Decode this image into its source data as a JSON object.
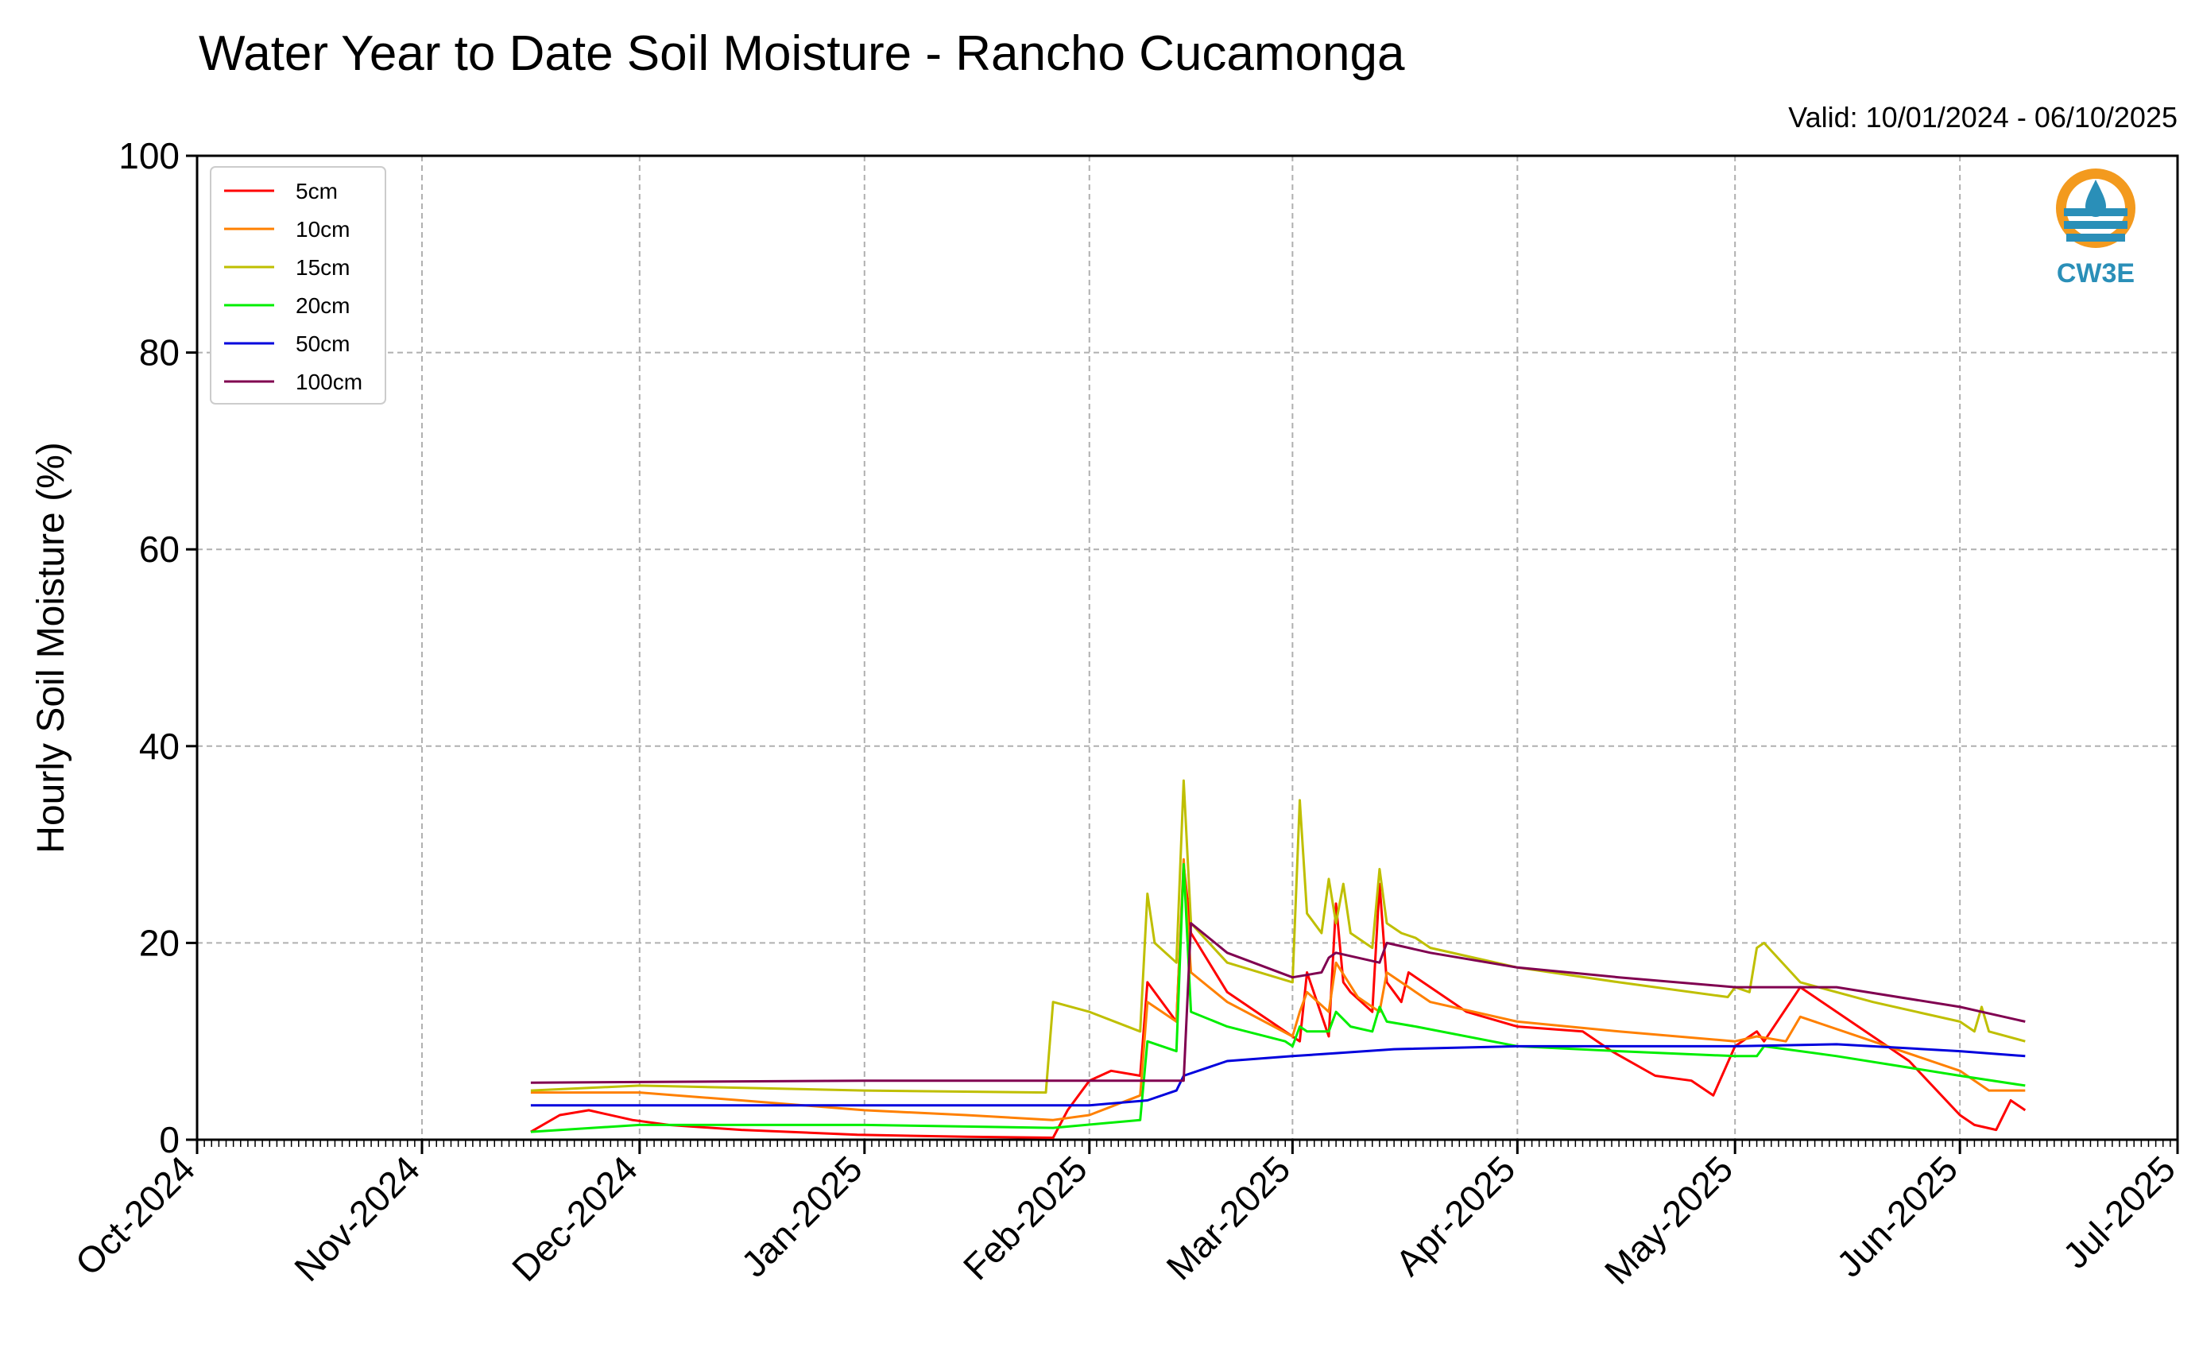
{
  "chart_data": {
    "type": "line",
    "title": "Water Year to Date Soil Moisture - Rancho Cucamonga",
    "subtitle": "Valid: 10/01/2024 - 06/10/2025",
    "xlabel": "",
    "ylabel": "Hourly Soil Moisture (%)",
    "ylim": [
      0,
      100
    ],
    "yticks": [
      0,
      20,
      40,
      60,
      80,
      100
    ],
    "xlim": [
      "2024-10-01",
      "2025-07-01"
    ],
    "xticks": [
      {
        "date": "2024-10-01",
        "label": "Oct-2024"
      },
      {
        "date": "2024-11-01",
        "label": "Nov-2024"
      },
      {
        "date": "2024-12-01",
        "label": "Dec-2024"
      },
      {
        "date": "2025-01-01",
        "label": "Jan-2025"
      },
      {
        "date": "2025-02-01",
        "label": "Feb-2025"
      },
      {
        "date": "2025-03-01",
        "label": "Mar-2025"
      },
      {
        "date": "2025-04-01",
        "label": "Apr-2025"
      },
      {
        "date": "2025-05-01",
        "label": "May-2025"
      },
      {
        "date": "2025-06-01",
        "label": "Jun-2025"
      },
      {
        "date": "2025-07-01",
        "label": "Jul-2025"
      }
    ],
    "grid": true,
    "legend_position": "top-left",
    "series": [
      {
        "name": "5cm",
        "color": "#ff0000",
        "x": [
          "2024-11-16",
          "2024-11-20",
          "2024-11-24",
          "2024-11-30",
          "2024-12-05",
          "2024-12-15",
          "2024-12-31",
          "2025-01-15",
          "2025-01-27",
          "2025-01-29",
          "2025-02-01",
          "2025-02-04",
          "2025-02-08",
          "2025-02-09",
          "2025-02-12",
          "2025-02-13",
          "2025-02-14",
          "2025-02-15",
          "2025-02-20",
          "2025-02-26",
          "2025-03-02",
          "2025-03-03",
          "2025-03-06",
          "2025-03-07",
          "2025-03-08",
          "2025-03-09",
          "2025-03-12",
          "2025-03-13",
          "2025-03-14",
          "2025-03-16",
          "2025-03-17",
          "2025-03-25",
          "2025-04-01",
          "2025-04-10",
          "2025-04-14",
          "2025-04-20",
          "2025-04-25",
          "2025-04-28",
          "2025-05-01",
          "2025-05-04",
          "2025-05-05",
          "2025-05-10",
          "2025-05-15",
          "2025-05-25",
          "2025-06-01",
          "2025-06-03",
          "2025-06-06",
          "2025-06-08",
          "2025-06-10"
        ],
        "y": [
          0.8,
          2.5,
          3.0,
          2.0,
          1.5,
          1.0,
          0.5,
          0.3,
          0.2,
          3.0,
          6.0,
          7.0,
          6.5,
          16.0,
          13.0,
          12.0,
          28.0,
          21.0,
          15.0,
          12.0,
          10.0,
          17.0,
          10.5,
          24.0,
          16.0,
          15.0,
          13.0,
          26.0,
          16.0,
          14.0,
          17.0,
          13.0,
          11.5,
          11.0,
          9.0,
          6.5,
          6.0,
          4.5,
          9.5,
          11.0,
          10.0,
          15.5,
          13.0,
          8.0,
          2.5,
          1.5,
          1.0,
          4.0,
          3.0
        ]
      },
      {
        "name": "10cm",
        "color": "#ff8000",
        "x": [
          "2024-11-16",
          "2024-12-01",
          "2024-12-15",
          "2025-01-01",
          "2025-01-15",
          "2025-01-27",
          "2025-02-01",
          "2025-02-08",
          "2025-02-09",
          "2025-02-13",
          "2025-02-14",
          "2025-02-15",
          "2025-02-20",
          "2025-03-01",
          "2025-03-02",
          "2025-03-03",
          "2025-03-06",
          "2025-03-07",
          "2025-03-10",
          "2025-03-13",
          "2025-03-14",
          "2025-03-20",
          "2025-04-01",
          "2025-04-15",
          "2025-05-01",
          "2025-05-04",
          "2025-05-08",
          "2025-05-10",
          "2025-05-20",
          "2025-06-01",
          "2025-06-05",
          "2025-06-10"
        ],
        "y": [
          4.8,
          4.8,
          4.0,
          3.0,
          2.5,
          2.0,
          2.5,
          4.5,
          14.0,
          12.0,
          28.5,
          17.0,
          14.0,
          10.5,
          13.0,
          15.0,
          13.0,
          18.0,
          14.5,
          13.0,
          17.0,
          14.0,
          12.0,
          11.0,
          10.0,
          10.5,
          10.0,
          12.5,
          10.0,
          7.0,
          5.0,
          5.0
        ]
      },
      {
        "name": "15cm",
        "color": "#bfbf00",
        "x": [
          "2024-11-16",
          "2024-12-01",
          "2025-01-01",
          "2025-01-26",
          "2025-01-27",
          "2025-02-01",
          "2025-02-08",
          "2025-02-09",
          "2025-02-10",
          "2025-02-13",
          "2025-02-14",
          "2025-02-15",
          "2025-02-20",
          "2025-03-01",
          "2025-03-02",
          "2025-03-03",
          "2025-03-05",
          "2025-03-06",
          "2025-03-07",
          "2025-03-08",
          "2025-03-09",
          "2025-03-12",
          "2025-03-13",
          "2025-03-14",
          "2025-03-16",
          "2025-03-18",
          "2025-03-20",
          "2025-04-01",
          "2025-04-15",
          "2025-04-30",
          "2025-05-01",
          "2025-05-03",
          "2025-05-04",
          "2025-05-05",
          "2025-05-10",
          "2025-05-20",
          "2025-06-01",
          "2025-06-03",
          "2025-06-04",
          "2025-06-05",
          "2025-06-10"
        ],
        "y": [
          5.0,
          5.5,
          5.0,
          4.8,
          14.0,
          13.0,
          11.0,
          25.0,
          20.0,
          18.0,
          36.5,
          22.0,
          18.0,
          16.0,
          34.5,
          23.0,
          21.0,
          26.5,
          22.0,
          26.0,
          21.0,
          19.5,
          27.5,
          22.0,
          21.0,
          20.5,
          19.5,
          17.5,
          16.0,
          14.5,
          15.5,
          15.0,
          19.5,
          20.0,
          16.0,
          14.0,
          12.0,
          11.0,
          13.5,
          11.0,
          10.0
        ]
      },
      {
        "name": "20cm",
        "color": "#00ee00",
        "x": [
          "2024-11-16",
          "2024-12-01",
          "2025-01-01",
          "2025-01-27",
          "2025-02-08",
          "2025-02-09",
          "2025-02-13",
          "2025-02-14",
          "2025-02-15",
          "2025-02-20",
          "2025-02-28",
          "2025-03-01",
          "2025-03-02",
          "2025-03-03",
          "2025-03-06",
          "2025-03-07",
          "2025-03-09",
          "2025-03-12",
          "2025-03-13",
          "2025-03-14",
          "2025-03-18",
          "2025-04-01",
          "2025-04-15",
          "2025-05-01",
          "2025-05-04",
          "2025-05-05",
          "2025-05-15",
          "2025-06-01",
          "2025-06-10"
        ],
        "y": [
          0.8,
          1.5,
          1.5,
          1.2,
          2.0,
          10.0,
          9.0,
          28.0,
          13.0,
          11.5,
          10.0,
          9.5,
          11.5,
          11.0,
          11.0,
          13.0,
          11.5,
          11.0,
          13.5,
          12.0,
          11.5,
          9.5,
          9.0,
          8.5,
          8.5,
          9.5,
          8.5,
          6.5,
          5.5
        ]
      },
      {
        "name": "50cm",
        "color": "#0000dd",
        "x": [
          "2024-11-16",
          "2025-01-01",
          "2025-02-01",
          "2025-02-09",
          "2025-02-13",
          "2025-02-14",
          "2025-02-20",
          "2025-03-01",
          "2025-03-07",
          "2025-03-15",
          "2025-04-01",
          "2025-04-15",
          "2025-05-01",
          "2025-05-15",
          "2025-06-01",
          "2025-06-10"
        ],
        "y": [
          3.5,
          3.5,
          3.5,
          4.0,
          5.0,
          6.5,
          8.0,
          8.5,
          8.8,
          9.2,
          9.5,
          9.5,
          9.5,
          9.7,
          9.0,
          8.5
        ]
      },
      {
        "name": "100cm",
        "color": "#800050",
        "x": [
          "2024-11-16",
          "2025-01-01",
          "2025-02-13",
          "2025-02-14",
          "2025-02-15",
          "2025-02-20",
          "2025-03-01",
          "2025-03-05",
          "2025-03-06",
          "2025-03-07",
          "2025-03-13",
          "2025-03-14",
          "2025-03-20",
          "2025-04-01",
          "2025-04-15",
          "2025-05-01",
          "2025-05-15",
          "2025-06-01",
          "2025-06-10"
        ],
        "y": [
          5.8,
          6.0,
          6.0,
          6.0,
          22.0,
          19.0,
          16.5,
          17.0,
          18.5,
          19.0,
          18.0,
          20.0,
          19.0,
          17.5,
          16.5,
          15.5,
          15.5,
          13.5,
          12.0
        ]
      }
    ]
  },
  "logo": {
    "text": "CW3E"
  }
}
